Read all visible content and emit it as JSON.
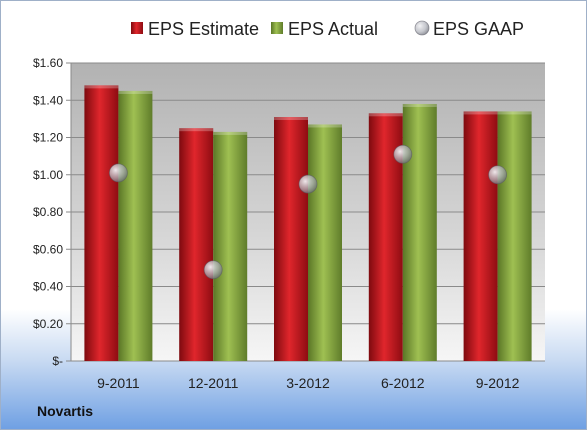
{
  "company": "Novartis",
  "chart_data": {
    "type": "bar",
    "categories": [
      "9-2011",
      "12-2011",
      "3-2012",
      "6-2012",
      "9-2012"
    ],
    "series": [
      {
        "name": "EPS Estimate",
        "kind": "bar",
        "color": "#c8141c",
        "values": [
          1.48,
          1.25,
          1.31,
          1.33,
          1.34
        ]
      },
      {
        "name": "EPS Actual",
        "kind": "bar",
        "color": "#86a83c",
        "values": [
          1.45,
          1.23,
          1.27,
          1.38,
          1.34
        ]
      },
      {
        "name": "EPS GAAP",
        "kind": "marker",
        "color": "#b0b6c4",
        "values": [
          1.01,
          0.49,
          0.95,
          1.11,
          1.0
        ]
      }
    ],
    "ylim": [
      0,
      1.6
    ],
    "yticks": [
      0,
      0.2,
      0.4,
      0.6,
      0.8,
      1.0,
      1.2,
      1.4,
      1.6
    ],
    "ytick_labels": [
      "$-",
      "$0.20",
      "$0.40",
      "$0.60",
      "$0.80",
      "$1.00",
      "$1.20",
      "$1.40",
      "$1.60"
    ],
    "grid": true,
    "legend_position": "top"
  }
}
